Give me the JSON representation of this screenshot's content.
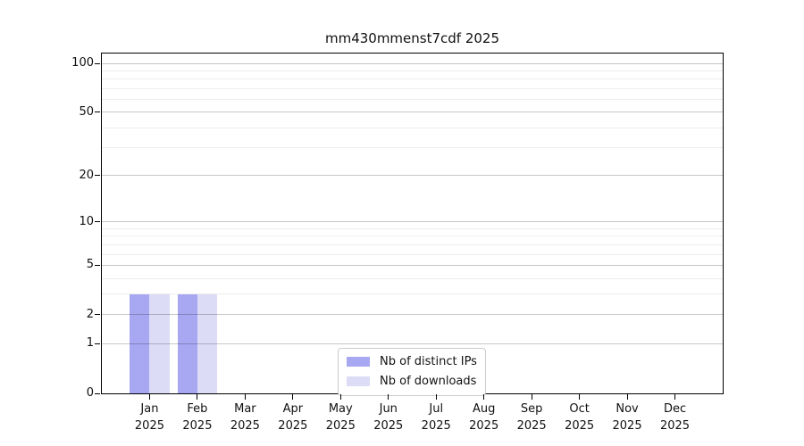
{
  "chart_data": {
    "type": "bar",
    "title": "mm430mmenst7cdf 2025",
    "categories": [
      "Jan",
      "Feb",
      "Mar",
      "Apr",
      "May",
      "Jun",
      "Jul",
      "Aug",
      "Sep",
      "Oct",
      "Nov",
      "Dec"
    ],
    "x_tick_second_line": "2025",
    "series": [
      {
        "name": "Nb of distinct IPs",
        "color": "#a8a8f2",
        "values": [
          3,
          3,
          0,
          0,
          0,
          0,
          0,
          0,
          0,
          0,
          0,
          0
        ]
      },
      {
        "name": "Nb of downloads",
        "color": "#dcdcf7",
        "values": [
          3,
          3,
          0,
          0,
          0,
          0,
          0,
          0,
          0,
          0,
          0,
          0
        ]
      }
    ],
    "yscale": "log10(value+1)",
    "ylim": [
      0,
      115
    ],
    "y_major_ticks": [
      0,
      1,
      2,
      5,
      10,
      20,
      50,
      100
    ],
    "y_minor_gridlines": [
      3,
      4,
      6,
      7,
      8,
      9,
      30,
      40,
      60,
      70,
      80,
      90
    ],
    "grid": "horizontal-only",
    "grid_above_bars": true,
    "legend_position": "lower-center",
    "colors": {
      "major_grid": "#c8c8c8",
      "minor_grid": "#ececec",
      "axis": "#000000",
      "background": "#ffffff"
    }
  }
}
